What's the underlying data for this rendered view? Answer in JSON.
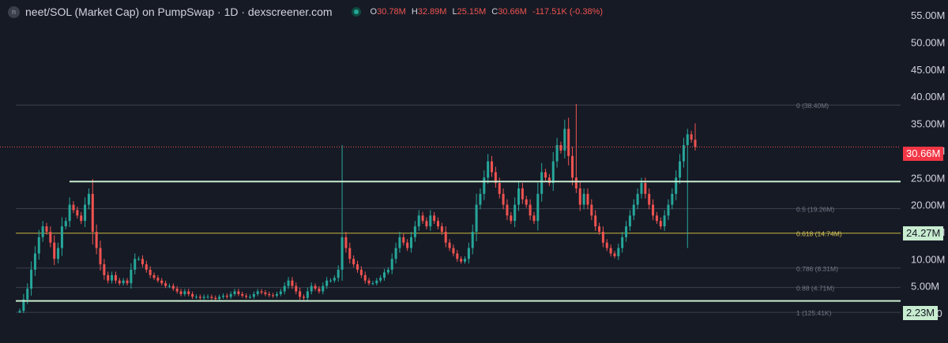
{
  "header": {
    "logo_letter": "n",
    "title": "neet/SOL (Market Cap) on PumpSwap · 1D · dexscreener.com",
    "ohlc": [
      {
        "key": "O",
        "value": "30.78M"
      },
      {
        "key": "H",
        "value": "32.89M"
      },
      {
        "key": "L",
        "value": "25.15M"
      },
      {
        "key": "C",
        "value": "30.66M"
      }
    ],
    "change": "-117.51K (-0.38%)"
  },
  "price_tags": {
    "current": "30.66M",
    "level_upper": "24.27M",
    "level_lower": "2.23M"
  },
  "colors": {
    "background": "#161a25",
    "up": "#26a69a",
    "down": "#ef5350",
    "level_line": "#c8ecd0",
    "fib_gold": "#c9b740"
  },
  "chart_data": {
    "type": "candlestick",
    "ylim": [
      0,
      58000000
    ],
    "y_ticks": [
      "55.00M",
      "50.00M",
      "45.00M",
      "40.00M",
      "35.00M",
      "30.00M",
      "25.00M",
      "20.00M",
      "15.00M",
      "10.00M",
      "5.00M",
      "0.0000"
    ],
    "y_tick_values": [
      55,
      50,
      45,
      40,
      35,
      30,
      25,
      20,
      15,
      10,
      5,
      0
    ],
    "current_price": 30.66,
    "horizontal_levels": [
      24.27,
      2.23
    ],
    "fib_levels": [
      {
        "label": "0 (38.40M)",
        "value": 38.4
      },
      {
        "label": "0.5 (19.26M)",
        "value": 19.26
      },
      {
        "label": "0.618 (14.74M)",
        "value": 14.74,
        "highlight": true
      },
      {
        "label": "0.786 (8.31M)",
        "value": 8.31
      },
      {
        "label": "0.88 (4.71M)",
        "value": 4.71
      },
      {
        "label": "1 (125.41K)",
        "value": 0.125
      }
    ],
    "closes": [
      0.4,
      2.5,
      4.5,
      8,
      11,
      14,
      16,
      15,
      13,
      10,
      12,
      16,
      17,
      20,
      19,
      18,
      17,
      20,
      22,
      15,
      12,
      9,
      7,
      6,
      7,
      6,
      5.5,
      6,
      5.5,
      8,
      10,
      10,
      9,
      8,
      7,
      6.5,
      6,
      5.5,
      5,
      5,
      4.5,
      4,
      3.5,
      4,
      3.5,
      3,
      3,
      2.8,
      3,
      3,
      2.8,
      2.6,
      3,
      3.2,
      3,
      3.5,
      4,
      3.5,
      3.2,
      3,
      3,
      3.5,
      4,
      3.8,
      3.5,
      3.3,
      3.2,
      3.5,
      4,
      5,
      6,
      5,
      4,
      3,
      2.8,
      4,
      5,
      4.5,
      4,
      5,
      6,
      6,
      6.5,
      8,
      14,
      12,
      10,
      9,
      8,
      7,
      6,
      5.5,
      5.5,
      6,
      6.5,
      7.5,
      8,
      10,
      12,
      14,
      13,
      12,
      14,
      16,
      18,
      17,
      16,
      18,
      17,
      16,
      15,
      13,
      12,
      11,
      10,
      9.5,
      10,
      12,
      15,
      20,
      22,
      25,
      28,
      26,
      24,
      22,
      20,
      18,
      17,
      20,
      23,
      21,
      20,
      18,
      17,
      22,
      26,
      25,
      24,
      28,
      31,
      30,
      34,
      29,
      25,
      23,
      20,
      22,
      20,
      18,
      16,
      15,
      13,
      12,
      11,
      10.5,
      12,
      14,
      16,
      18,
      20,
      22,
      24,
      22,
      20,
      18,
      17,
      16,
      18,
      20,
      22,
      25,
      28,
      31,
      33,
      32,
      30.66
    ],
    "highs": {
      "84": 31.0,
      "145": 38.6,
      "176": 35.0
    },
    "lows": {
      "174": 12.0
    }
  }
}
